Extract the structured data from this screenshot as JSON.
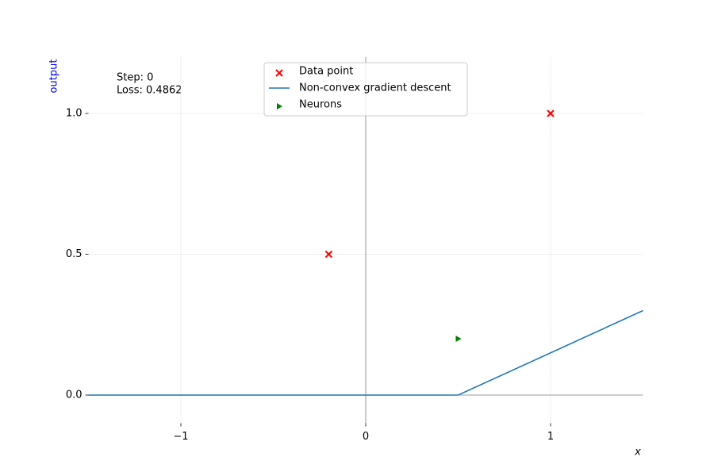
{
  "chart_data": {
    "type": "combo",
    "xlabel": "x",
    "ylabel": "output",
    "ylabel_color": "blue",
    "annotations": [
      "Step: 0",
      "Loss: 0.4862"
    ],
    "xlim": [
      -1.5,
      1.5
    ],
    "ylim": [
      -0.1,
      1.2
    ],
    "xticks": [
      {
        "value": -1,
        "label": "−1"
      },
      0,
      1
    ],
    "yticks": [
      {
        "value": 0,
        "label": "0.0"
      },
      0.5,
      {
        "value": 1,
        "label": "1.0"
      }
    ],
    "grid": true,
    "legend": "upper center",
    "series": [
      {
        "name": "Data point",
        "type": "scatter",
        "marker": "x",
        "color": "red",
        "x": [
          -0.2,
          1
        ],
        "values": [
          0.5,
          1
        ]
      },
      {
        "name": "Non-convex gradient descent",
        "type": "line",
        "color": "#1f77b4",
        "x": [
          -1.5,
          0.5,
          1.5
        ],
        "values": [
          0,
          0,
          0.3
        ]
      },
      {
        "name": "Neurons",
        "type": "scatter",
        "marker": "triangle-right",
        "color": "green",
        "x": [
          0.5
        ],
        "values": [
          0.2
        ]
      }
    ]
  }
}
